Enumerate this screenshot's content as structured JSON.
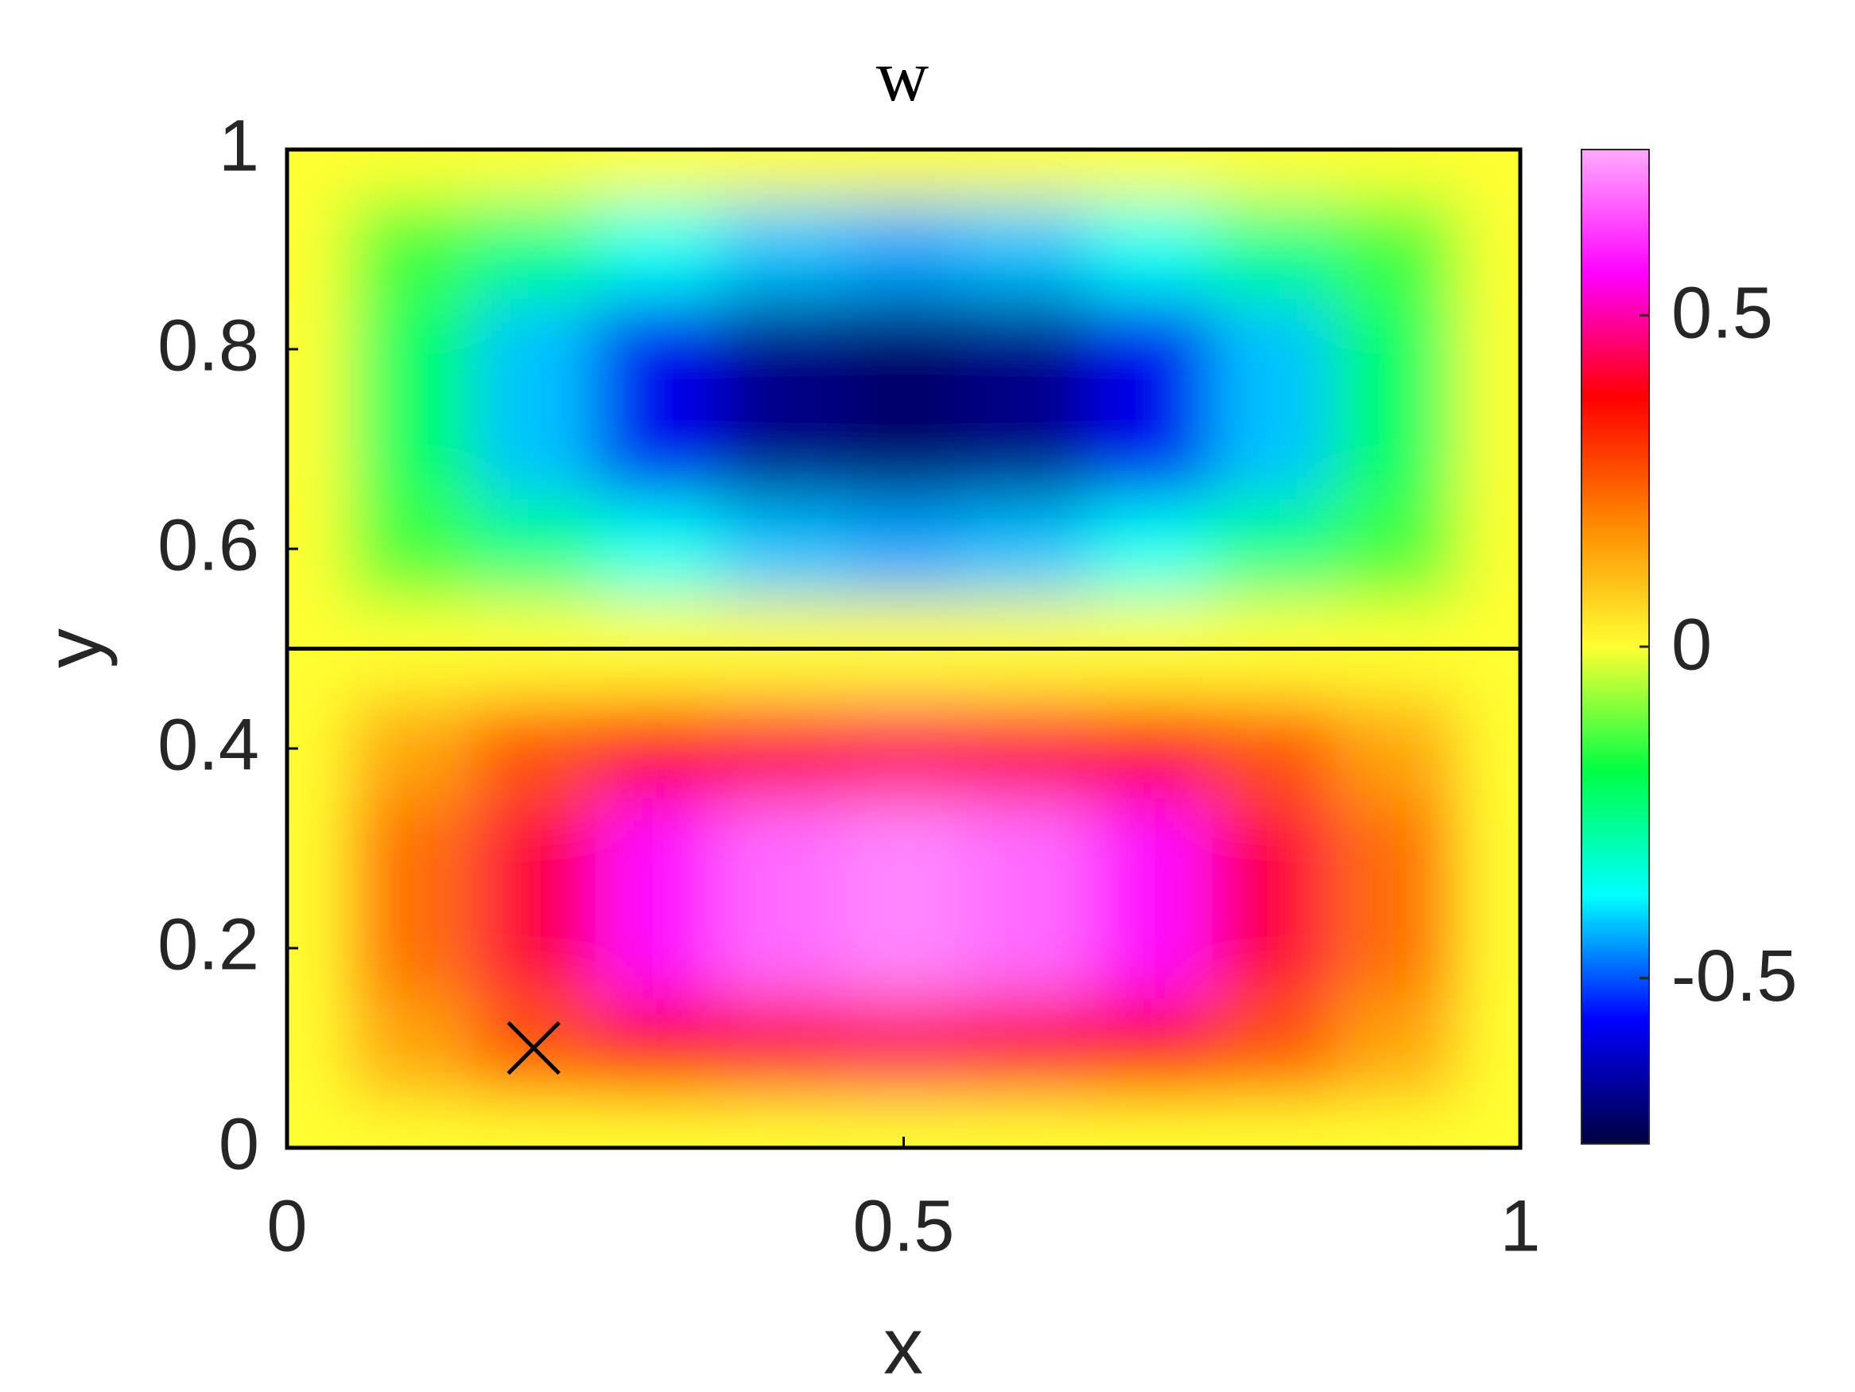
{
  "chart_data": {
    "type": "heatmap",
    "title": "w",
    "xlabel": "x",
    "ylabel": "y",
    "x": [
      0,
      0.1,
      0.2,
      0.3,
      0.4,
      0.5,
      0.6,
      0.7,
      0.8,
      0.9,
      1
    ],
    "y": [
      0,
      0.1,
      0.2,
      0.3,
      0.4,
      0.5,
      0.6,
      0.7,
      0.8,
      0.9,
      1
    ],
    "z": [
      [
        0,
        0,
        0,
        0,
        0,
        0,
        0,
        0,
        0,
        0,
        0
      ],
      [
        0,
        0.14,
        0.26,
        0.36,
        0.42,
        0.44,
        0.42,
        0.36,
        0.26,
        0.14,
        0
      ],
      [
        0,
        0.22,
        0.42,
        0.58,
        0.68,
        0.71,
        0.68,
        0.58,
        0.42,
        0.22,
        0
      ],
      [
        0,
        0.22,
        0.42,
        0.58,
        0.68,
        0.71,
        0.68,
        0.58,
        0.42,
        0.22,
        0
      ],
      [
        0,
        0.14,
        0.26,
        0.36,
        0.42,
        0.44,
        0.42,
        0.36,
        0.26,
        0.14,
        0
      ],
      [
        0,
        0,
        0,
        0,
        0,
        0,
        0,
        0,
        0,
        0,
        0
      ],
      [
        0,
        -0.14,
        -0.26,
        -0.36,
        -0.42,
        -0.44,
        -0.42,
        -0.36,
        -0.26,
        -0.14,
        0
      ],
      [
        0,
        -0.22,
        -0.42,
        -0.58,
        -0.68,
        -0.71,
        -0.68,
        -0.58,
        -0.42,
        -0.22,
        0
      ],
      [
        0,
        -0.22,
        -0.42,
        -0.58,
        -0.68,
        -0.71,
        -0.68,
        -0.58,
        -0.42,
        -0.22,
        0
      ],
      [
        0,
        -0.14,
        -0.26,
        -0.36,
        -0.42,
        -0.44,
        -0.42,
        -0.36,
        -0.26,
        -0.14,
        0
      ],
      [
        0,
        0,
        0,
        0,
        0,
        0,
        0,
        0,
        0,
        0,
        0
      ]
    ],
    "xlim": [
      0,
      1
    ],
    "ylim": [
      0,
      1
    ],
    "xticks": [
      0,
      0.5,
      1
    ],
    "yticks": [
      0,
      0.2,
      0.4,
      0.6,
      0.8,
      1
    ],
    "clim": [
      -0.75,
      0.75
    ],
    "cticks": [
      -0.5,
      0,
      0.5
    ],
    "colormap": [
      "#000040",
      "#0000ff",
      "#00ffff",
      "#00ff44",
      "#ffff33",
      "#ff8800",
      "#ff0000",
      "#ff00ff",
      "#ffaaff"
    ],
    "hlines": [
      0.5
    ],
    "marker": {
      "x": 0.2,
      "y": 0.1
    }
  }
}
